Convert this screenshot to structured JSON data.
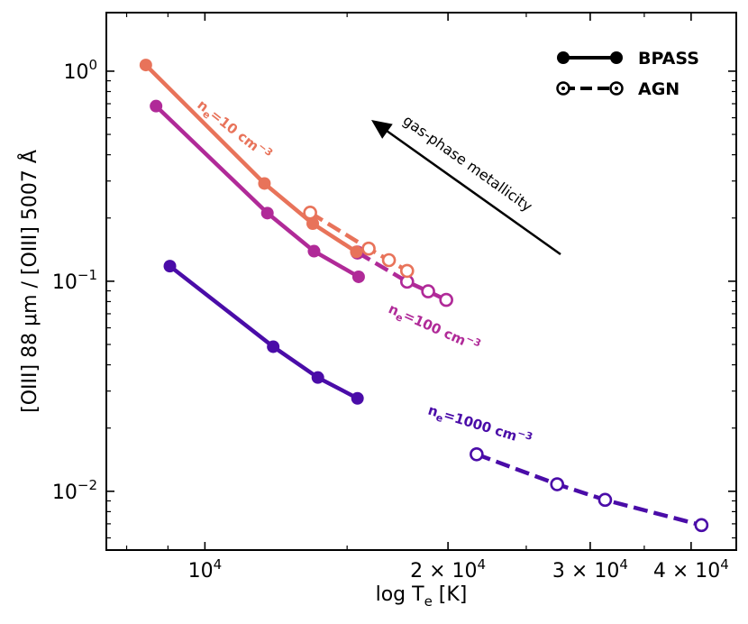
{
  "chart_data": {
    "type": "line",
    "xscale": "log",
    "yscale": "log",
    "xlabel_main": "log T",
    "xlabel_sub": "e",
    "xlabel_unit": " [K]",
    "ylabel": "[OIII] 88 μm / [OIII] 5007 Å",
    "xlim": [
      7550,
      45500
    ],
    "ylim": [
      0.00525,
      1.9
    ],
    "xticks": [
      {
        "value": 10000,
        "base": "10",
        "exp": "4"
      },
      {
        "value": 20000,
        "base": "2 × 10",
        "exp": "4"
      },
      {
        "value": 30000,
        "base": "3 × 10",
        "exp": "4"
      },
      {
        "value": 40000,
        "base": "4 × 10",
        "exp": "4"
      }
    ],
    "yticks": [
      {
        "value": 1,
        "base": "10",
        "exp": "0"
      },
      {
        "value": 0.1,
        "base": "10",
        "exp": "−1"
      },
      {
        "value": 0.01,
        "base": "10",
        "exp": "−2"
      }
    ],
    "legend": [
      {
        "label": "BPASS",
        "style": "solid",
        "marker": "filled"
      },
      {
        "label": "AGN",
        "style": "dashed",
        "marker": "open"
      }
    ],
    "series": [
      {
        "name": "BPASS ne=10",
        "color": "#e8735a",
        "style": "solid",
        "marker": "filled",
        "x": [
          8450,
          11850,
          13600,
          15400
        ],
        "y": [
          1.07,
          0.292,
          0.188,
          0.138
        ]
      },
      {
        "name": "AGN ne=10",
        "color": "#e8735a",
        "style": "dashed",
        "marker": "open",
        "x": [
          13500,
          15950,
          16900,
          17800
        ],
        "y": [
          0.212,
          0.143,
          0.126,
          0.112
        ]
      },
      {
        "name": "BPASS ne=100",
        "color": "#b02a98",
        "style": "solid",
        "marker": "filled",
        "x": [
          8700,
          11950,
          13650,
          15500
        ],
        "y": [
          0.682,
          0.211,
          0.139,
          0.105
        ]
      },
      {
        "name": "AGN ne=100",
        "color": "#b02a98",
        "style": "dashed",
        "marker": "open",
        "x": [
          15450,
          17800,
          18900,
          19900
        ],
        "y": [
          0.137,
          0.0995,
          0.0895,
          0.0815
        ]
      },
      {
        "name": "BPASS ne=1000",
        "color": "#4a0ca8",
        "style": "solid",
        "marker": "filled",
        "x": [
          9050,
          12150,
          13800,
          15450
        ],
        "y": [
          0.118,
          0.0488,
          0.0348,
          0.0277
        ]
      },
      {
        "name": "AGN ne=1000",
        "color": "#4a0ca8",
        "style": "dashed",
        "marker": "open",
        "x": [
          21700,
          27300,
          31300,
          41200
        ],
        "y": [
          0.015,
          0.0108,
          0.0091,
          0.0069
        ]
      }
    ],
    "annotations": [
      {
        "prefix": "n",
        "sub": "e",
        "text": "=10 cm",
        "sup": "−3",
        "color": "#e8735a"
      },
      {
        "prefix": "n",
        "sub": "e",
        "text": "=100 cm",
        "sup": "−3",
        "color": "#b02a98"
      },
      {
        "prefix": "n",
        "sub": "e",
        "text": "=1000 cm",
        "sup": "−3",
        "color": "#4a0ca8"
      }
    ],
    "arrow_label": "gas-phase metallicity"
  }
}
